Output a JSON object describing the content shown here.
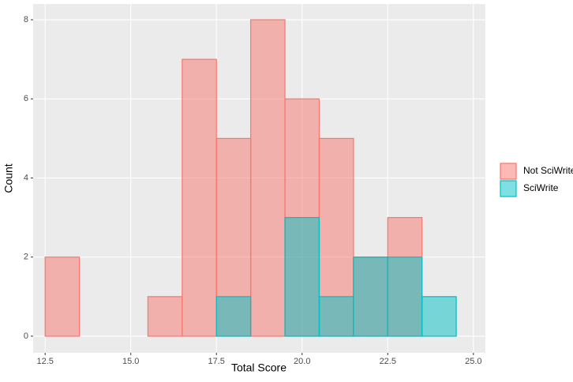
{
  "chart_data": {
    "type": "histogram",
    "x_label": "Total Score",
    "y_label": "Count",
    "bins": [
      12.5,
      13.5,
      14.5,
      15.5,
      16.5,
      17.5,
      18.5,
      19.5,
      20.5,
      21.5,
      22.5,
      23.5,
      24.5
    ],
    "series": [
      {
        "name": "Not SciWrite",
        "color": "#F8766D",
        "values": [
          2,
          0,
          0,
          1,
          7,
          5,
          8,
          6,
          5,
          2,
          3,
          0
        ]
      },
      {
        "name": "SciWrite",
        "color": "#00BFC4",
        "values": [
          0,
          0,
          0,
          0,
          0,
          1,
          0,
          3,
          1,
          2,
          2,
          1
        ]
      }
    ],
    "xlim": [
      12.15,
      25.35
    ],
    "ylim": [
      -0.42,
      8.4
    ],
    "xticks": [
      12.5,
      {
        "value": 15,
        "label": "15.0"
      },
      17.5,
      {
        "value": 20,
        "label": "20.0"
      },
      22.5,
      {
        "value": 25,
        "label": "25.0"
      }
    ],
    "yticks": [
      0,
      2,
      4,
      6,
      8
    ],
    "grid": true,
    "legend": "right"
  }
}
